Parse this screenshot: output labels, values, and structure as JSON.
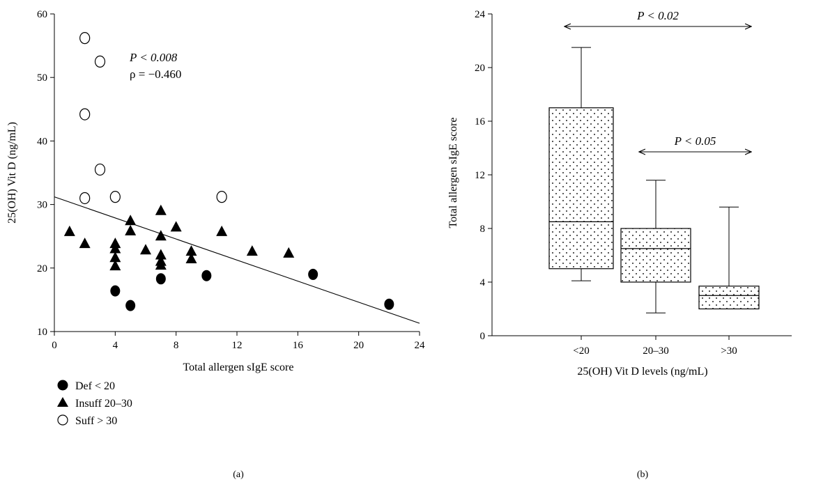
{
  "chart_data": [
    {
      "type": "scatter",
      "panel_label": "(a)",
      "xlabel": "Total allergen sIgE score",
      "ylabel": "25(OH) Vit D (ng/mL)",
      "xlim": [
        0,
        24
      ],
      "ylim": [
        10,
        60
      ],
      "xticks": [
        "0",
        "4",
        "8",
        "12",
        "16",
        "20",
        "24"
      ],
      "yticks": [
        "10",
        "20",
        "30",
        "40",
        "50",
        "60"
      ],
      "annotations": {
        "p": "P < 0.008",
        "rho": "ρ = −0.460"
      },
      "regression": {
        "x": [
          0,
          24
        ],
        "y": [
          31.2,
          11.3
        ]
      },
      "series": [
        {
          "name": "Def < 20",
          "marker": "filled-circle",
          "x": [
            4,
            5,
            7,
            10,
            17,
            22
          ],
          "y": [
            16.4,
            14.1,
            18.3,
            18.8,
            19.0,
            14.3
          ]
        },
        {
          "name": "Insuff 20–30",
          "marker": "filled-triangle",
          "x": [
            1,
            2,
            4,
            4,
            4,
            4,
            5,
            5,
            6,
            7,
            7,
            7,
            7,
            7,
            8,
            9,
            9,
            11,
            13,
            15.4
          ],
          "y": [
            25.7,
            23.8,
            23.8,
            23.0,
            21.6,
            20.3,
            27.4,
            25.8,
            22.8,
            29.0,
            25.0,
            22.0,
            21.0,
            20.4,
            26.4,
            22.6,
            21.4,
            25.7,
            22.6,
            22.3
          ]
        },
        {
          "name": "Suff > 30",
          "marker": "open-circle",
          "x": [
            2,
            3,
            2,
            3,
            2,
            4,
            11
          ],
          "y": [
            56.2,
            52.5,
            44.2,
            35.5,
            31.0,
            31.2,
            31.2
          ]
        }
      ]
    },
    {
      "type": "box",
      "panel_label": "(b)",
      "xlabel": "25(OH) Vit D levels (ng/mL)",
      "ylabel": "Total allergen sIgE score",
      "ylim": [
        0,
        24
      ],
      "yticks": [
        "0",
        "4",
        "8",
        "12",
        "16",
        "20",
        "24"
      ],
      "categories": [
        "<20",
        "20–30",
        ">30"
      ],
      "boxes": [
        {
          "min": 4.1,
          "q1": 5.0,
          "median": 8.5,
          "q3": 17.0,
          "max": 21.5
        },
        {
          "min": 1.7,
          "q1": 4.0,
          "median": 6.5,
          "q3": 8.0,
          "max": 11.6
        },
        {
          "min": 2.0,
          "q1": 2.0,
          "median": 3.0,
          "q3": 3.7,
          "max": 9.6
        }
      ],
      "comparisons": [
        {
          "from": "<20",
          "to": ">30",
          "label": "P < 0.02"
        },
        {
          "from": "20–30",
          "to": ">30",
          "label": "P < 0.05"
        }
      ]
    }
  ]
}
